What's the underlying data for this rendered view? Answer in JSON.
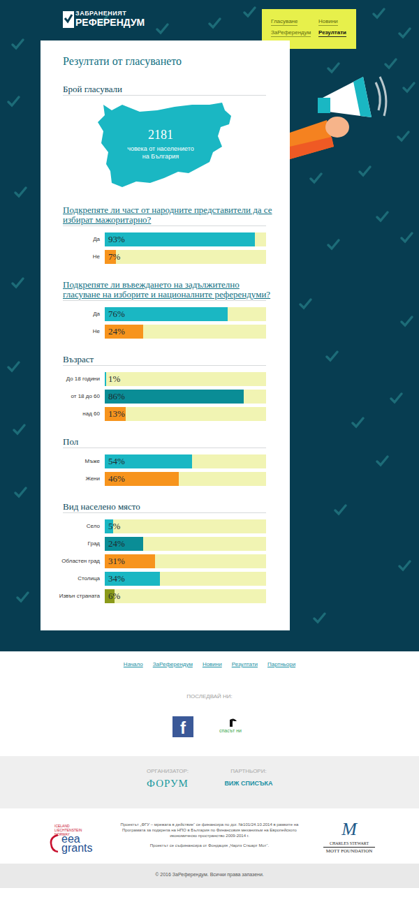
{
  "header": {
    "logo_top": "ЗАБРАНЕНИЯТ",
    "logo_bottom": "РЕФЕРЕНДУМ",
    "nav": [
      "Гласуване",
      "Новини",
      "ЗаРеферендум",
      "Резултати"
    ]
  },
  "title": "Резултати от гласуването",
  "voters": {
    "heading": "Брой гласували",
    "count": 2181,
    "caption": [
      "човека от населението",
      "на България"
    ]
  },
  "chart_data": [
    {
      "type": "bar",
      "orientation": "horizontal",
      "title": "Подкрепяте ли част от народните представители да се избират мажоритарно?",
      "categories": [
        "Да",
        "Не"
      ],
      "values": [
        93,
        7
      ],
      "value_labels": [
        "93%",
        "7%"
      ],
      "colors": [
        "#1ab7c3",
        "#f7941d"
      ],
      "xlim": [
        0,
        100
      ],
      "data_labels": true,
      "tick_labels": "y"
    },
    {
      "type": "bar",
      "orientation": "horizontal",
      "title": "Подкрепяте ли въвеждането на задължително гласуване на изборите и националните референдуми?",
      "categories": [
        "Да",
        "Не"
      ],
      "values": [
        76,
        24
      ],
      "value_labels": [
        "76%",
        "24%"
      ],
      "colors": [
        "#1ab7c3",
        "#f7941d"
      ],
      "xlim": [
        0,
        100
      ],
      "data_labels": true,
      "tick_labels": "y"
    },
    {
      "type": "bar",
      "orientation": "horizontal",
      "title": "Възраст",
      "categories": [
        "До 18 години",
        "от 18 до 60",
        "над 60"
      ],
      "values": [
        1,
        86,
        13
      ],
      "value_labels": [
        "1%",
        "86%",
        "13%"
      ],
      "colors": [
        "#1ab7c3",
        "#0a8d96",
        "#f7941d"
      ],
      "xlim": [
        0,
        100
      ],
      "data_labels": true,
      "tick_labels": "y"
    },
    {
      "type": "bar",
      "orientation": "horizontal",
      "title": "Пол",
      "categories": [
        "Мъже",
        "Жени"
      ],
      "values": [
        54,
        46
      ],
      "value_labels": [
        "54%",
        "46%"
      ],
      "colors": [
        "#1ab7c3",
        "#f7941d"
      ],
      "xlim": [
        0,
        100
      ],
      "data_labels": true,
      "tick_labels": "y"
    },
    {
      "type": "bar",
      "orientation": "horizontal",
      "title": "Вид населено място",
      "categories": [
        "Село",
        "Град",
        "Областен град",
        "Столица",
        "Извън страната"
      ],
      "values": [
        5,
        24,
        31,
        34,
        6
      ],
      "value_labels": [
        "5%",
        "24%",
        "31%",
        "34%",
        "6%"
      ],
      "colors": [
        "#1ab7c3",
        "#0a8d96",
        "#f7941d",
        "#1ab7c3",
        "#8b9a1a"
      ],
      "xlim": [
        0,
        100
      ],
      "data_labels": true,
      "tick_labels": "y"
    }
  ],
  "footer": {
    "links": [
      "Начало",
      "ЗаРеферендум",
      "Новини",
      "Резултати",
      "Партньори"
    ],
    "follow": "ПОСЛЕДВАЙ НИ:",
    "facebook": "f",
    "partner_logo": "спасът ни",
    "organizer_label": "ОРГАНИЗАТОР:",
    "organizer": "ФОРУМ",
    "partners_label": "ПАРТНЬОРИ:",
    "partners_link": "ВИЖ СПИСЪКА",
    "eea": [
      "ICELAND",
      "LIECHTENSTEIN",
      "NORWAY",
      "eea",
      "grants"
    ],
    "funding": [
      "Проектът „ФГУ – мрежата в действие“ се финансира по дог. №101/24.10.2014 в рамките на",
      "Програмата за подкрепа на НПО в България по Финансовия механизъм на Европейското",
      "икономическо пространство 2009-2014 г.",
      "Проектът се съфинансира от Фондация „Чарлз Стюарт Мот“."
    ],
    "mott": [
      "M",
      "CHARLES STEWART",
      "MOTT FOUNDATION"
    ],
    "copyright": "© 2016 ЗаРеферендум. Всички права запазени."
  }
}
